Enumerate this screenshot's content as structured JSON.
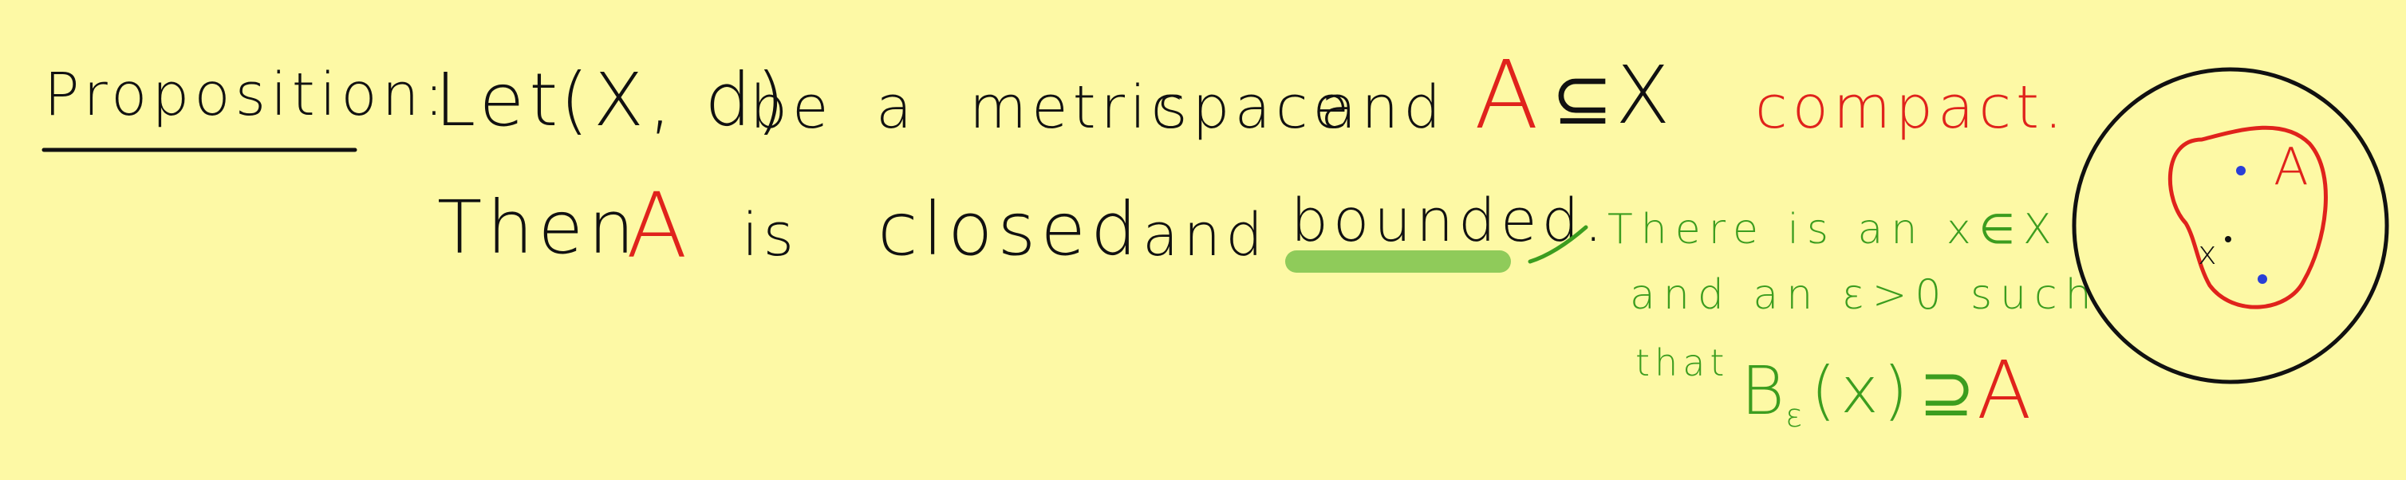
{
  "heading": "Proposition:",
  "line1": {
    "w1": "Let",
    "w2": "(X, d)",
    "w3": "be",
    "w4": "a",
    "w5": "metric",
    "w6": "space",
    "w7": "and",
    "set_A": "A",
    "subset": "⊆",
    "set_X": "X",
    "compact": "compact."
  },
  "line2": {
    "w1": "Then",
    "set_A": "A",
    "w2": "is",
    "w3": "closed",
    "w4": "and",
    "bounded": "bounded."
  },
  "note": {
    "line1": "There is an x∈X",
    "line2": "and an ε>0 such",
    "line3_word": "that",
    "ball": "B",
    "ball_sub": "ε",
    "ball_arg": "(x)",
    "supset": "⊇",
    "set_A": "A"
  },
  "diagram": {
    "set_label": "A",
    "point_label": "x"
  },
  "colors": {
    "background": "#fdf9a5",
    "ink": "#111111",
    "red": "#e0231c",
    "green": "#3c9d1f",
    "highlight": "#8fcb5a",
    "point_blue": "#2a3fd6"
  }
}
